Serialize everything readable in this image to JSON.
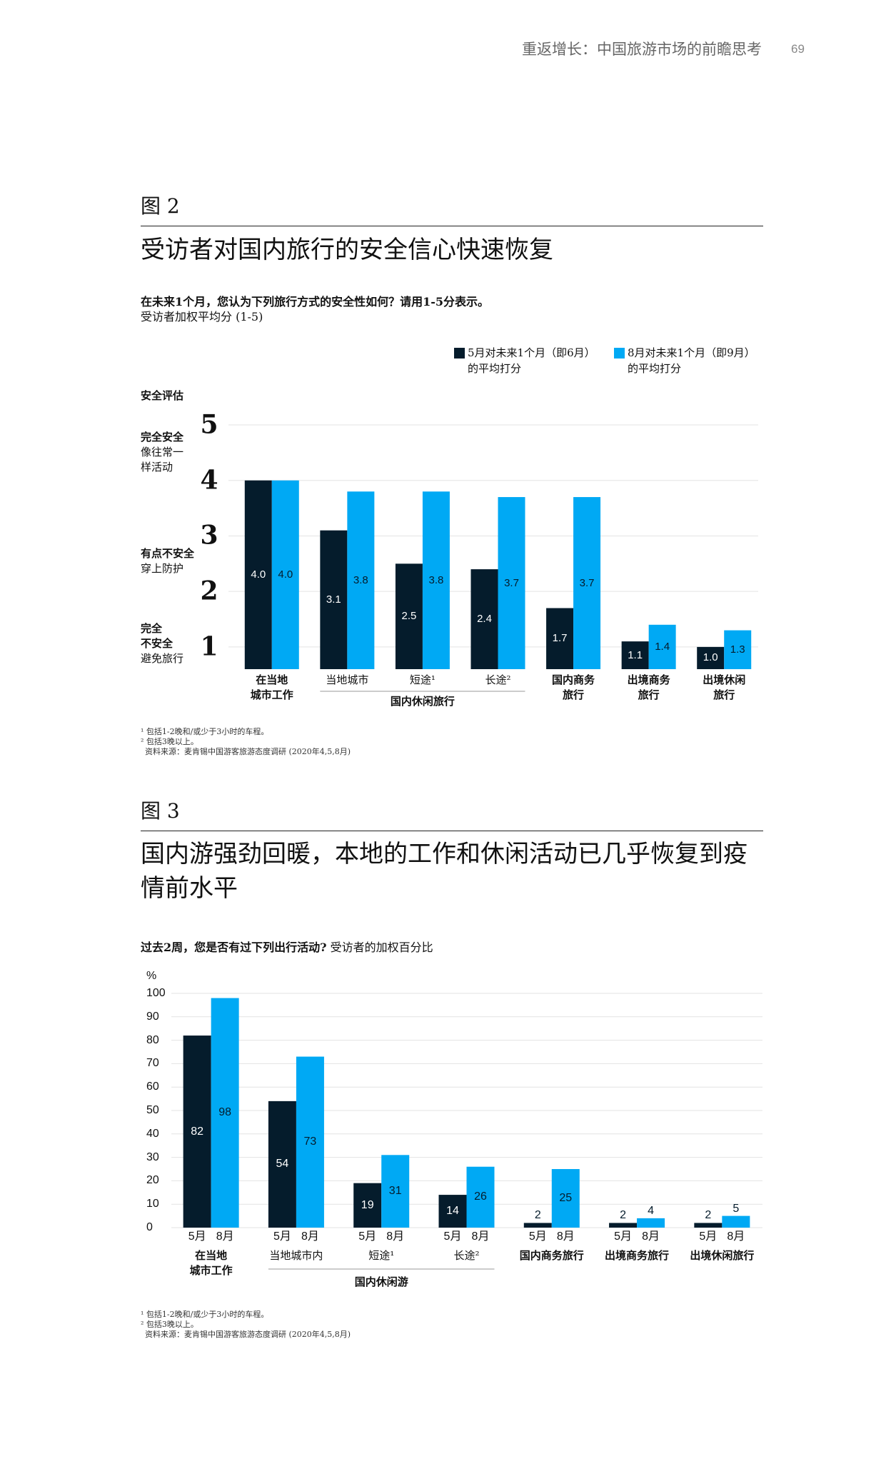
{
  "header": {
    "title": "重返增长：中国旅游市场的前瞻思考",
    "page": "69"
  },
  "chart_data": [
    {
      "type": "bar",
      "figure_label": "图 2",
      "title": "受访者对国内旅行的安全信心快速恢复",
      "question": "在未来1个月，您认为下列旅行方式的安全性如何？请用1-5分表示。",
      "subtitle": "受访者加权平均分 (1-5)",
      "y_label": "安全评估",
      "annotations": [
        {
          "heading": "完全安全",
          "text": "像往常一\n样活动"
        },
        {
          "heading": "有点不安全",
          "text": "穿上防护"
        },
        {
          "heading": "完全\n不安全",
          "text": "避免旅行"
        }
      ],
      "categories": [
        "在当地\n城市工作",
        "当地城市",
        "短途¹",
        "长途²",
        "国内商务\n旅行",
        "出境商务\n旅行",
        "出境休闲\n旅行"
      ],
      "group_label": "国内休闲旅行",
      "series": [
        {
          "name": "5月对未来1个月（即6月）\n的平均打分",
          "color": "#051c2c",
          "values": [
            4.0,
            3.1,
            2.5,
            2.4,
            1.7,
            1.1,
            1.0
          ],
          "value_labels": [
            "4.0",
            "3.1",
            "2.5",
            "2.4",
            "1.7",
            "1.1",
            "1.0"
          ]
        },
        {
          "name": "8月对未来1个月（即9月）\n的平均打分",
          "color": "#00a9f4",
          "values": [
            4.0,
            3.8,
            3.8,
            3.7,
            3.7,
            1.4,
            1.3
          ],
          "value_labels": [
            "4.0",
            "3.8",
            "3.8",
            "3.7",
            "3.7",
            "1.4",
            "1.3"
          ]
        }
      ],
      "ylim": [
        0.6,
        5
      ],
      "yticks": [
        1,
        2,
        3,
        4,
        5
      ],
      "grid": true,
      "legend": "top-right",
      "footnotes": [
        "¹ 包括1-2晚和/或少于3小时的车程。",
        "² 包括3晚以上。"
      ],
      "source": "资料来源：麦肯锡中国游客旅游态度调研 (2020年4,5,8月)"
    },
    {
      "type": "bar",
      "figure_label": "图 3",
      "title": "国内游强劲回暖，本地的工作和休闲活动已几乎恢复到疫情前水平",
      "question": "过去2周，您是否有过下列出行活动?",
      "subtitle": "受访者的加权百分比",
      "y_unit": "%",
      "categories": [
        "在当地\n城市工作",
        "当地城市内",
        "短途¹",
        "长途²",
        "国内商务旅行",
        "出境商务旅行",
        "出境休闲旅行"
      ],
      "group_label": "国内休闲游",
      "series": [
        {
          "name": "5月",
          "color": "#051c2c",
          "values": [
            82,
            54,
            19,
            14,
            2,
            2,
            2
          ]
        },
        {
          "name": "8月",
          "color": "#00a9f4",
          "values": [
            98,
            73,
            31,
            26,
            25,
            4,
            5
          ]
        }
      ],
      "ylim": [
        0,
        100
      ],
      "yticks": [
        0,
        10,
        20,
        30,
        40,
        50,
        60,
        70,
        80,
        90,
        100
      ],
      "grid": true,
      "footnotes": [
        "¹ 包括1-2晚和/或少于3小时的车程。",
        "² 包括3晚以上。"
      ],
      "source": "资料来源：麦肯锡中国游客旅游态度调研 (2020年4,5,8月)"
    }
  ]
}
